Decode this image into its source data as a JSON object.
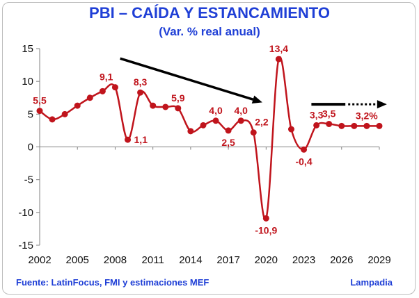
{
  "header": {
    "title": "PBI – CAÍDA Y ESTANCAMIENTO",
    "subtitle": "(Var. % real anual)"
  },
  "footer": {
    "source": "Fuente: LatinFocus, FMI y estimaciones MEF",
    "brand": "Lampadia"
  },
  "colors": {
    "series": "#c0141c",
    "title": "#1f3fd6",
    "axis": "#808080",
    "arrow": "#000000"
  },
  "chart_data": {
    "type": "line",
    "title": "PBI – CAÍDA Y ESTANCAMIENTO",
    "subtitle": "(Var. % real anual)",
    "xlabel": "",
    "ylabel": "",
    "xlim": [
      2002,
      2029
    ],
    "ylim": [
      -15,
      15
    ],
    "ytick_step": 5,
    "xticks": [
      2002,
      2005,
      2008,
      2011,
      2014,
      2017,
      2020,
      2023,
      2026,
      2029
    ],
    "yticks": [
      15,
      10,
      5,
      0,
      -5,
      -10,
      -15
    ],
    "grid": false,
    "smooth": true,
    "series": [
      {
        "x": [
          2002,
          2003,
          2004,
          2005,
          2006,
          2007,
          2008,
          2009,
          2010,
          2011,
          2012,
          2013,
          2014,
          2015,
          2016,
          2017,
          2018,
          2019,
          2020,
          2021,
          2022,
          2023,
          2024,
          2025,
          2026,
          2027,
          2028,
          2029
        ],
        "values": [
          5.5,
          4.2,
          5.0,
          6.3,
          7.5,
          8.5,
          9.1,
          1.1,
          8.3,
          6.3,
          6.1,
          5.9,
          2.4,
          3.3,
          4.0,
          2.5,
          4.0,
          2.2,
          -10.9,
          13.4,
          2.7,
          -0.4,
          3.3,
          3.5,
          3.2,
          3.2,
          3.2,
          3.2
        ],
        "marker": "circle"
      }
    ],
    "data_labels": [
      {
        "x": 2002,
        "text": "5,5",
        "pos": "above"
      },
      {
        "x": 2008,
        "text": "9,1",
        "pos": "above-left"
      },
      {
        "x": 2009,
        "text": "1,1",
        "pos": "right"
      },
      {
        "x": 2010,
        "text": "8,3",
        "pos": "above"
      },
      {
        "x": 2013,
        "text": "5,9",
        "pos": "above"
      },
      {
        "x": 2016,
        "text": "4,0",
        "pos": "above"
      },
      {
        "x": 2017,
        "text": "2,5",
        "pos": "below"
      },
      {
        "x": 2018,
        "text": "4,0",
        "pos": "above"
      },
      {
        "x": 2019,
        "text": "2,2",
        "pos": "above-right"
      },
      {
        "x": 2020,
        "text": "-10,9",
        "pos": "below"
      },
      {
        "x": 2021,
        "text": "13,4",
        "pos": "above"
      },
      {
        "x": 2023,
        "text": "-0,4",
        "pos": "below"
      },
      {
        "x": 2024,
        "text": "3,3",
        "pos": "above"
      },
      {
        "x": 2025,
        "text": "3,5",
        "pos": "above"
      },
      {
        "x": 2027,
        "text": "3,2%",
        "pos": "above-right"
      }
    ],
    "annotations": [
      {
        "type": "arrow",
        "from": [
          2008.4,
          13.5
        ],
        "to": [
          2019.7,
          6.8
        ],
        "style": "solid"
      },
      {
        "type": "arrow",
        "from": [
          2023.6,
          6.5
        ],
        "to": [
          2029.6,
          6.5
        ],
        "style": "solid-then-dotted"
      }
    ]
  }
}
